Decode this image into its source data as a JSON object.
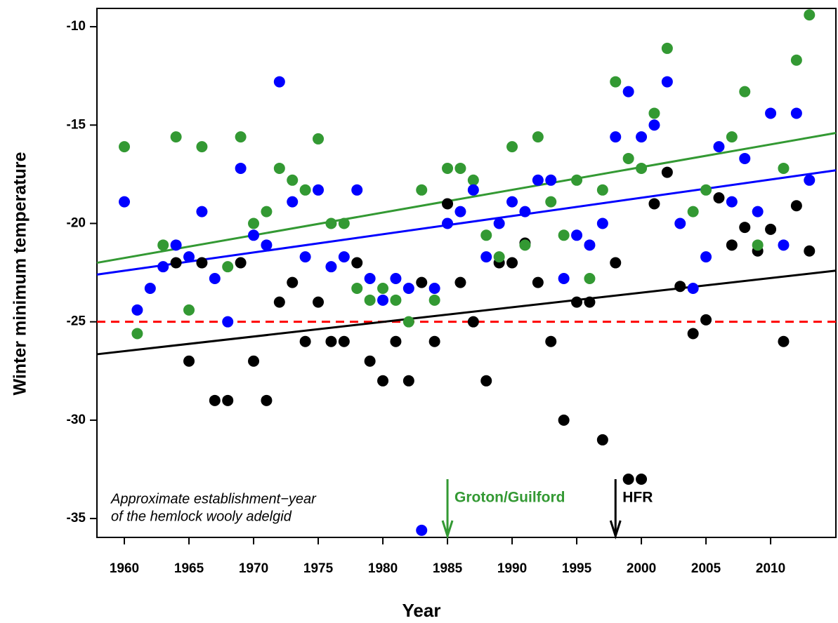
{
  "chart_data": {
    "type": "scatter",
    "xlabel": "Year",
    "ylabel": "Winter minimum temperature",
    "x": [
      1960,
      1961,
      1962,
      1963,
      1964,
      1965,
      1966,
      1967,
      1968,
      1969,
      1970,
      1971,
      1972,
      1973,
      1974,
      1975,
      1976,
      1977,
      1978,
      1979,
      1980,
      1981,
      1982,
      1983,
      1984,
      1985,
      1986,
      1987,
      1988,
      1989,
      1990,
      1991,
      1992,
      1993,
      1994,
      1995,
      1996,
      1997,
      1998,
      1999,
      2000,
      2001,
      2002,
      2003,
      2004,
      2005,
      2006,
      2007,
      2008,
      2009,
      2010,
      2011,
      2012,
      2013
    ],
    "series": [
      {
        "color": "#000000",
        "values": [
          null,
          null,
          null,
          null,
          -22,
          -27,
          -22,
          -29,
          -29,
          -22,
          -27,
          -29,
          -24,
          -23,
          -26,
          -24,
          -26,
          -26,
          -22,
          -27,
          -28,
          -26,
          -28,
          -23,
          -26,
          -19,
          -23,
          -25,
          -28,
          -22,
          -22,
          -21,
          -23,
          -26,
          -30,
          -24,
          -24,
          -31,
          -22,
          -33,
          -33,
          -19,
          -17.4,
          -23.2,
          -25.6,
          -24.9,
          -18.7,
          -21.1,
          -20.2,
          -21.4,
          -20.3,
          -26,
          -19.1,
          -21.4
        ],
        "trend_values": [
          -26.65,
          -22.4
        ]
      },
      {
        "color": "#339933",
        "values": [
          -16.1,
          -25.6,
          null,
          -21.1,
          -15.6,
          -24.4,
          -16.1,
          null,
          -22.2,
          -15.6,
          -20.0,
          -19.4,
          -17.2,
          -17.8,
          -18.3,
          -15.7,
          -20.0,
          -20.0,
          -23.3,
          -23.9,
          -23.3,
          -23.9,
          -25.0,
          -18.3,
          -23.9,
          -17.2,
          -17.2,
          -17.8,
          -20.6,
          -21.7,
          -16.1,
          -21.1,
          -15.6,
          -18.9,
          -20.6,
          -17.8,
          -22.8,
          -18.3,
          -12.8,
          -16.7,
          -17.2,
          -14.4,
          -11.1,
          null,
          -19.4,
          -18.3,
          null,
          -15.6,
          -13.3,
          -21.1,
          null,
          -17.2,
          -11.7,
          -9.4
        ],
        "trend_values": [
          -22.0,
          -15.4
        ]
      },
      {
        "color": "#0000ff",
        "values": [
          -18.9,
          -24.4,
          -23.3,
          -22.2,
          -21.1,
          -21.7,
          -19.4,
          -22.8,
          -25.0,
          -17.2,
          -20.6,
          -21.1,
          -12.8,
          -18.9,
          -21.7,
          -18.3,
          -22.2,
          -21.7,
          -18.3,
          -22.8,
          -23.9,
          -22.8,
          -23.3,
          -35.6,
          -23.3,
          -20.0,
          -19.4,
          -18.3,
          -21.7,
          -20.0,
          -18.9,
          -19.4,
          -17.8,
          -17.8,
          -22.8,
          -20.6,
          -21.1,
          -20.0,
          -15.6,
          -13.3,
          -15.6,
          -15.0,
          -12.8,
          -20.0,
          -23.3,
          -21.7,
          -16.1,
          -18.9,
          -16.7,
          -19.4,
          -14.4,
          -21.1,
          -14.4,
          -17.8
        ],
        "trend_values": [
          -22.6,
          -17.3
        ]
      }
    ],
    "trend_x": [
      1957.88,
      2015.05
    ],
    "hline": {
      "value": -25,
      "color": "#ff0000"
    },
    "arrows": [
      {
        "x": 1985,
        "label": "Groton/Guilford",
        "color": "#339933"
      },
      {
        "x": 1998,
        "label": "HFR",
        "color": "#000000"
      }
    ],
    "annotation": [
      "Approximate establishment−year",
      "of the hemlock wooly adelgid"
    ],
    "xlim": [
      1957.88,
      2015.05
    ],
    "ylim": [
      -35.96,
      -9.07
    ],
    "xticks": [
      1960,
      1965,
      1970,
      1975,
      1980,
      1985,
      1990,
      1995,
      2000,
      2005,
      2010
    ],
    "yticks": [
      -35,
      -30,
      -25,
      -20,
      -15,
      -10
    ]
  }
}
